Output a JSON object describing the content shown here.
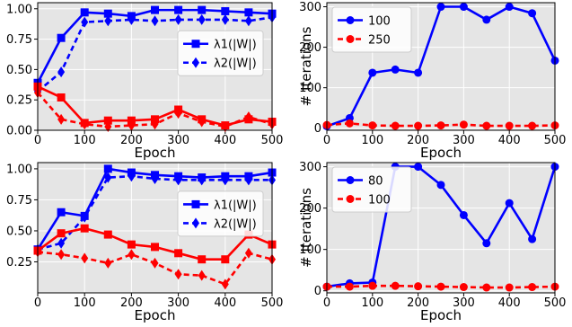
{
  "figure": {
    "colors": {
      "blue": "#0000ff",
      "red": "#ff0000",
      "plot_bg": "#e5e5e5",
      "grid": "#ffffff"
    }
  },
  "chart_data": [
    {
      "type": "line",
      "title": "",
      "xlabel": "Epoch",
      "ylabel": "",
      "xlim": [
        0,
        500
      ],
      "ylim": [
        0,
        1.05
      ],
      "xticks": [
        "0",
        "100",
        "200",
        "300",
        "400",
        "500"
      ],
      "yticks": [
        "0.00",
        "0.25",
        "0.50",
        "0.75",
        "1.00"
      ],
      "grid": true,
      "legend_position": "center-right",
      "x": [
        0,
        50,
        100,
        150,
        200,
        250,
        300,
        350,
        400,
        450,
        500
      ],
      "series": [
        {
          "name": "λ1(|W|)",
          "color": "#0000ff",
          "marker": "square",
          "linestyle": "solid",
          "legend": true,
          "values": [
            0.39,
            0.76,
            0.97,
            0.96,
            0.94,
            0.99,
            0.99,
            0.99,
            0.98,
            0.97,
            0.96
          ]
        },
        {
          "name": "λ2(|W|)",
          "color": "#0000ff",
          "marker": "diamond",
          "linestyle": "dashed",
          "legend": true,
          "values": [
            0.32,
            0.48,
            0.89,
            0.9,
            0.91,
            0.9,
            0.91,
            0.91,
            0.91,
            0.9,
            0.93
          ]
        },
        {
          "name": "λ1(|W|)",
          "color": "#ff0000",
          "marker": "square",
          "linestyle": "solid",
          "legend": false,
          "values": [
            0.36,
            0.27,
            0.06,
            0.08,
            0.08,
            0.09,
            0.17,
            0.09,
            0.04,
            0.09,
            0.07
          ]
        },
        {
          "name": "λ2(|W|)",
          "color": "#ff0000",
          "marker": "diamond",
          "linestyle": "dashed",
          "legend": false,
          "values": [
            0.31,
            0.09,
            0.05,
            0.03,
            0.04,
            0.05,
            0.14,
            0.07,
            0.03,
            0.11,
            0.05
          ]
        }
      ]
    },
    {
      "type": "line",
      "title": "",
      "xlabel": "Epoch",
      "ylabel": "# Iterations",
      "xlim": [
        0,
        500
      ],
      "ylim": [
        -5,
        310
      ],
      "xticks": [
        "0",
        "100",
        "200",
        "300",
        "400",
        "500"
      ],
      "yticks": [
        "0",
        "100",
        "200",
        "300"
      ],
      "grid": true,
      "legend_position": "top-left",
      "x": [
        0,
        50,
        100,
        150,
        200,
        250,
        300,
        350,
        400,
        450,
        500
      ],
      "series": [
        {
          "name": "100",
          "color": "#0000ff",
          "marker": "circle",
          "linestyle": "solid",
          "legend": true,
          "values": [
            5,
            25,
            137,
            145,
            137,
            300,
            300,
            268,
            300,
            284,
            167
          ]
        },
        {
          "name": "250",
          "color": "#ff0000",
          "marker": "circle",
          "linestyle": "dashed",
          "legend": true,
          "values": [
            8,
            12,
            7,
            6,
            6,
            7,
            9,
            6,
            6,
            6,
            7
          ]
        }
      ]
    },
    {
      "type": "line",
      "title": "",
      "xlabel": "Epoch",
      "ylabel": "",
      "xlim": [
        0,
        500
      ],
      "ylim": [
        0,
        1.05
      ],
      "xticks": [
        "0",
        "100",
        "200",
        "300",
        "400",
        "500"
      ],
      "yticks": [
        "0.25",
        "0.50",
        "0.75",
        "1.00"
      ],
      "grid": true,
      "legend_position": "center-right",
      "x": [
        0,
        50,
        100,
        150,
        200,
        250,
        300,
        350,
        400,
        450,
        500
      ],
      "series": [
        {
          "name": "λ1(|W|)",
          "color": "#0000ff",
          "marker": "square",
          "linestyle": "solid",
          "legend": true,
          "values": [
            0.35,
            0.65,
            0.62,
            1.0,
            0.97,
            0.95,
            0.94,
            0.93,
            0.94,
            0.94,
            0.97
          ]
        },
        {
          "name": "λ2(|W|)",
          "color": "#0000ff",
          "marker": "diamond",
          "linestyle": "dashed",
          "legend": true,
          "values": [
            0.35,
            0.4,
            0.61,
            0.93,
            0.94,
            0.92,
            0.91,
            0.91,
            0.91,
            0.91,
            0.91
          ]
        },
        {
          "name": "λ1(|W|)",
          "color": "#ff0000",
          "marker": "square",
          "linestyle": "solid",
          "legend": false,
          "values": [
            0.34,
            0.48,
            0.52,
            0.47,
            0.39,
            0.37,
            0.32,
            0.27,
            0.27,
            0.47,
            0.39
          ]
        },
        {
          "name": "λ2(|W|)",
          "color": "#ff0000",
          "marker": "diamond",
          "linestyle": "dashed",
          "legend": false,
          "values": [
            0.33,
            0.31,
            0.28,
            0.24,
            0.31,
            0.24,
            0.15,
            0.14,
            0.07,
            0.32,
            0.27
          ]
        }
      ]
    },
    {
      "type": "line",
      "title": "",
      "xlabel": "Epoch",
      "ylabel": "# Iterations",
      "xlim": [
        0,
        500
      ],
      "ylim": [
        -5,
        310
      ],
      "xticks": [
        "0",
        "100",
        "200",
        "300",
        "400",
        "500"
      ],
      "yticks": [
        "0",
        "100",
        "200",
        "300"
      ],
      "grid": true,
      "legend_position": "top-left",
      "x": [
        0,
        50,
        100,
        150,
        200,
        250,
        300,
        350,
        400,
        450,
        500
      ],
      "series": [
        {
          "name": "80",
          "color": "#0000ff",
          "marker": "circle",
          "linestyle": "solid",
          "legend": true,
          "values": [
            10,
            18,
            20,
            300,
            300,
            256,
            183,
            115,
            212,
            125,
            300
          ]
        },
        {
          "name": "100",
          "color": "#ff0000",
          "marker": "circle",
          "linestyle": "dashed",
          "legend": true,
          "values": [
            10,
            10,
            12,
            12,
            11,
            10,
            9,
            8,
            8,
            9,
            10
          ]
        }
      ]
    }
  ]
}
